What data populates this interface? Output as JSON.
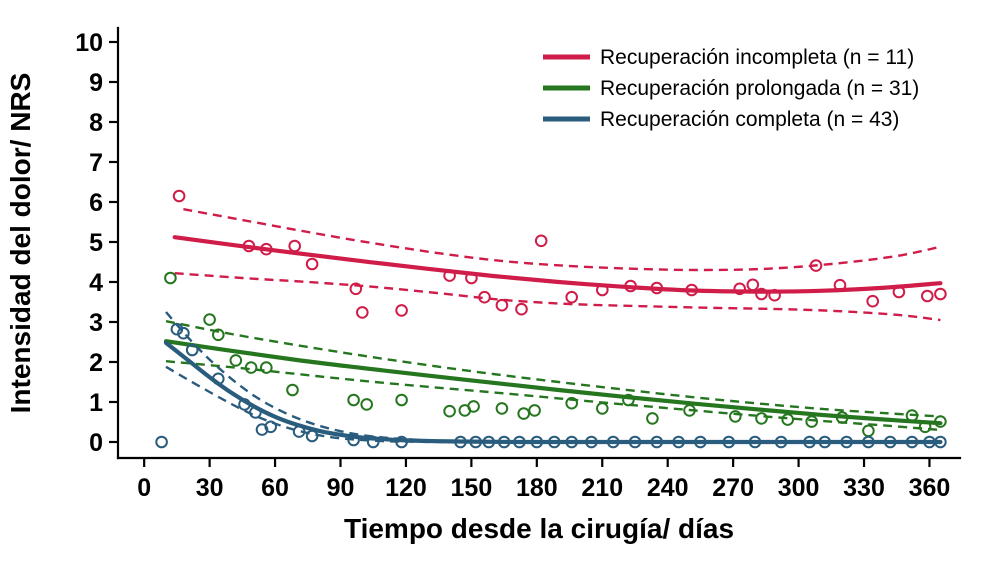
{
  "figure": {
    "background": "#ffffff"
  },
  "chart_data": {
    "type": "scatter",
    "title": "",
    "xlabel": "Tiempo desde la cirugía/ días",
    "ylabel": "Intensidad del dolor/ NRS",
    "xlim": [
      -12,
      374
    ],
    "ylim": [
      -0.4,
      10.35
    ],
    "xticks": [
      0,
      30,
      60,
      90,
      120,
      150,
      180,
      210,
      240,
      270,
      300,
      330,
      360
    ],
    "yticks": [
      0,
      1,
      2,
      3,
      4,
      5,
      6,
      7,
      8,
      9,
      10
    ],
    "grid": false,
    "legend_position": "top-right",
    "series": [
      {
        "id": "incompleta",
        "name": "Recuperación incompleta (n = 11)",
        "color": "#d01c48",
        "points": [
          [
            16,
            6.15
          ],
          [
            48,
            4.9
          ],
          [
            56,
            4.82
          ],
          [
            69,
            4.9
          ],
          [
            77,
            4.45
          ],
          [
            97,
            3.83
          ],
          [
            100,
            3.24
          ],
          [
            118,
            3.29
          ],
          [
            140,
            4.16
          ],
          [
            150,
            4.1
          ],
          [
            156,
            3.62
          ],
          [
            164,
            3.42
          ],
          [
            173,
            3.32
          ],
          [
            182,
            5.03
          ],
          [
            196,
            3.62
          ],
          [
            210,
            3.8
          ],
          [
            223,
            3.9
          ],
          [
            235,
            3.85
          ],
          [
            251,
            3.8
          ],
          [
            273,
            3.83
          ],
          [
            279,
            3.93
          ],
          [
            283,
            3.7
          ],
          [
            289,
            3.67
          ],
          [
            308,
            4.41
          ],
          [
            319,
            3.92
          ],
          [
            334,
            3.52
          ],
          [
            346,
            3.75
          ],
          [
            359,
            3.65
          ],
          [
            365,
            3.7
          ]
        ],
        "fit": [
          [
            14,
            5.12
          ],
          [
            40,
            4.93
          ],
          [
            70,
            4.72
          ],
          [
            100,
            4.52
          ],
          [
            130,
            4.33
          ],
          [
            160,
            4.15
          ],
          [
            190,
            4.0
          ],
          [
            220,
            3.88
          ],
          [
            250,
            3.79
          ],
          [
            280,
            3.76
          ],
          [
            310,
            3.78
          ],
          [
            340,
            3.86
          ],
          [
            365,
            3.97
          ]
        ],
        "ci_upper": [
          [
            18,
            5.82
          ],
          [
            45,
            5.55
          ],
          [
            75,
            5.25
          ],
          [
            105,
            4.97
          ],
          [
            135,
            4.72
          ],
          [
            165,
            4.52
          ],
          [
            195,
            4.4
          ],
          [
            225,
            4.33
          ],
          [
            255,
            4.3
          ],
          [
            285,
            4.33
          ],
          [
            315,
            4.45
          ],
          [
            345,
            4.65
          ],
          [
            365,
            4.88
          ]
        ],
        "ci_lower": [
          [
            14,
            4.22
          ],
          [
            45,
            4.1
          ],
          [
            75,
            4.0
          ],
          [
            105,
            3.88
          ],
          [
            135,
            3.72
          ],
          [
            165,
            3.55
          ],
          [
            195,
            3.45
          ],
          [
            225,
            3.4
          ],
          [
            255,
            3.36
          ],
          [
            285,
            3.33
          ],
          [
            315,
            3.28
          ],
          [
            345,
            3.18
          ],
          [
            365,
            3.05
          ]
        ]
      },
      {
        "id": "prolongada",
        "name": "Recuperación prolongada (n = 31)",
        "color": "#25761f",
        "points": [
          [
            12,
            4.1
          ],
          [
            30,
            3.06
          ],
          [
            34,
            2.68
          ],
          [
            42,
            2.04
          ],
          [
            49,
            1.86
          ],
          [
            56,
            1.86
          ],
          [
            68,
            1.3
          ],
          [
            96,
            1.05
          ],
          [
            102,
            0.94
          ],
          [
            118,
            1.05
          ],
          [
            140,
            0.77
          ],
          [
            147,
            0.79
          ],
          [
            151,
            0.89
          ],
          [
            164,
            0.84
          ],
          [
            174,
            0.71
          ],
          [
            179,
            0.79
          ],
          [
            196,
            0.97
          ],
          [
            210,
            0.84
          ],
          [
            222,
            1.05
          ],
          [
            233,
            0.59
          ],
          [
            250,
            0.79
          ],
          [
            271,
            0.64
          ],
          [
            283,
            0.59
          ],
          [
            295,
            0.56
          ],
          [
            306,
            0.51
          ],
          [
            320,
            0.61
          ],
          [
            332,
            0.28
          ],
          [
            352,
            0.66
          ],
          [
            358,
            0.38
          ],
          [
            365,
            0.51
          ]
        ],
        "fit": [
          [
            10,
            2.52
          ],
          [
            40,
            2.28
          ],
          [
            70,
            2.05
          ],
          [
            100,
            1.85
          ],
          [
            130,
            1.66
          ],
          [
            160,
            1.48
          ],
          [
            190,
            1.3
          ],
          [
            220,
            1.13
          ],
          [
            250,
            0.97
          ],
          [
            280,
            0.82
          ],
          [
            310,
            0.68
          ],
          [
            340,
            0.56
          ],
          [
            365,
            0.47
          ]
        ],
        "ci_upper": [
          [
            10,
            3.02
          ],
          [
            40,
            2.7
          ],
          [
            70,
            2.42
          ],
          [
            100,
            2.16
          ],
          [
            130,
            1.92
          ],
          [
            160,
            1.7
          ],
          [
            190,
            1.5
          ],
          [
            220,
            1.31
          ],
          [
            250,
            1.13
          ],
          [
            280,
            0.97
          ],
          [
            310,
            0.83
          ],
          [
            340,
            0.72
          ],
          [
            365,
            0.64
          ]
        ],
        "ci_lower": [
          [
            10,
            2.02
          ],
          [
            40,
            1.87
          ],
          [
            70,
            1.7
          ],
          [
            100,
            1.53
          ],
          [
            130,
            1.38
          ],
          [
            160,
            1.24
          ],
          [
            190,
            1.09
          ],
          [
            220,
            0.94
          ],
          [
            250,
            0.8
          ],
          [
            280,
            0.66
          ],
          [
            310,
            0.53
          ],
          [
            340,
            0.41
          ],
          [
            365,
            0.3
          ]
        ]
      },
      {
        "id": "completa",
        "name": "Recuperación completa (n = 43)",
        "color": "#2a5c7e",
        "points": [
          [
            8,
            0
          ],
          [
            15,
            2.82
          ],
          [
            18,
            2.72
          ],
          [
            22,
            2.3
          ],
          [
            34,
            1.58
          ],
          [
            46,
            0.94
          ],
          [
            51,
            0.74
          ],
          [
            54,
            0.31
          ],
          [
            58,
            0.38
          ],
          [
            71,
            0.26
          ],
          [
            77,
            0.15
          ],
          [
            96,
            0.05
          ],
          [
            105,
            0
          ],
          [
            118,
            0
          ],
          [
            145,
            0
          ],
          [
            152,
            0
          ],
          [
            158,
            0
          ],
          [
            165,
            0
          ],
          [
            172,
            0
          ],
          [
            180,
            0
          ],
          [
            188,
            0
          ],
          [
            196,
            0
          ],
          [
            205,
            0
          ],
          [
            215,
            0
          ],
          [
            225,
            0
          ],
          [
            235,
            0
          ],
          [
            245,
            0
          ],
          [
            255,
            0
          ],
          [
            268,
            0
          ],
          [
            280,
            0
          ],
          [
            292,
            0
          ],
          [
            305,
            0
          ],
          [
            312,
            0
          ],
          [
            322,
            0
          ],
          [
            332,
            0
          ],
          [
            342,
            0
          ],
          [
            352,
            0
          ],
          [
            360,
            0
          ],
          [
            365,
            0
          ]
        ],
        "fit": [
          [
            10,
            2.48
          ],
          [
            20,
            2.05
          ],
          [
            30,
            1.62
          ],
          [
            40,
            1.23
          ],
          [
            50,
            0.9
          ],
          [
            60,
            0.63
          ],
          [
            70,
            0.43
          ],
          [
            80,
            0.28
          ],
          [
            90,
            0.18
          ],
          [
            100,
            0.11
          ],
          [
            110,
            0.07
          ],
          [
            120,
            0.04
          ],
          [
            135,
            0.02
          ],
          [
            150,
            0.01
          ],
          [
            170,
            0
          ],
          [
            200,
            0
          ],
          [
            240,
            0
          ],
          [
            280,
            0
          ],
          [
            320,
            0
          ],
          [
            365,
            0
          ]
        ],
        "ci_upper": [
          [
            10,
            3.25
          ],
          [
            20,
            2.62
          ],
          [
            30,
            2.06
          ],
          [
            40,
            1.58
          ],
          [
            50,
            1.17
          ],
          [
            60,
            0.85
          ],
          [
            70,
            0.6
          ],
          [
            80,
            0.41
          ],
          [
            90,
            0.27
          ],
          [
            100,
            0.17
          ],
          [
            110,
            0.11
          ],
          [
            120,
            0.07
          ],
          [
            135,
            0.03
          ],
          [
            150,
            0.01
          ],
          [
            170,
            0
          ],
          [
            200,
            0
          ],
          [
            240,
            0
          ],
          [
            280,
            0
          ],
          [
            320,
            0
          ],
          [
            365,
            0
          ]
        ],
        "ci_lower": [
          [
            10,
            1.88
          ],
          [
            20,
            1.56
          ],
          [
            30,
            1.25
          ],
          [
            40,
            0.95
          ],
          [
            50,
            0.68
          ],
          [
            60,
            0.46
          ],
          [
            70,
            0.29
          ],
          [
            80,
            0.17
          ],
          [
            90,
            0.09
          ],
          [
            100,
            0.05
          ],
          [
            110,
            0.02
          ],
          [
            120,
            0.01
          ],
          [
            135,
            0
          ],
          [
            150,
            0
          ],
          [
            170,
            0
          ],
          [
            200,
            0
          ],
          [
            240,
            0
          ],
          [
            280,
            0
          ],
          [
            320,
            0
          ],
          [
            365,
            0
          ]
        ]
      }
    ]
  }
}
